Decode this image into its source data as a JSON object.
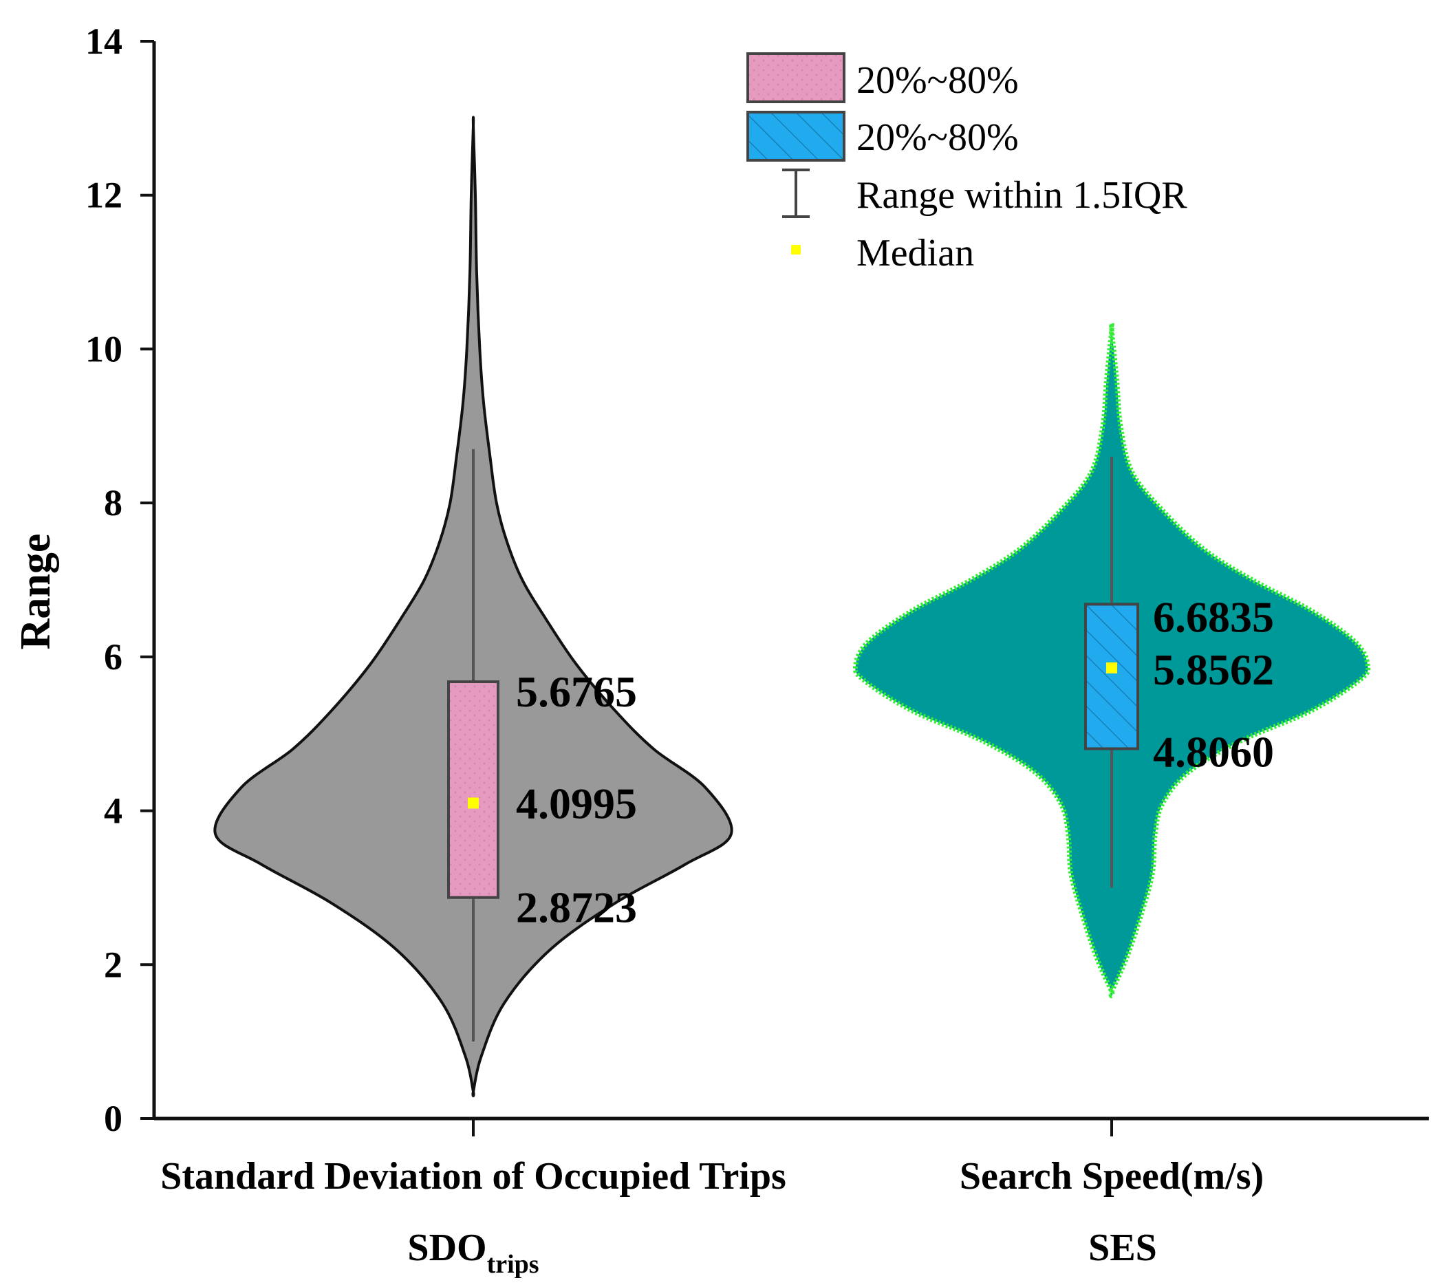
{
  "chart_data": {
    "type": "violin",
    "ylabel": "Range",
    "ylim": [
      0,
      14
    ],
    "yticks": [
      "0",
      "2",
      "4",
      "6",
      "8",
      "10",
      "12",
      "14"
    ],
    "grid": false,
    "legend_position": "top-right",
    "categories": [
      {
        "label": "Standard Deviation of Occupied Trips",
        "sublabel_main": "SDO",
        "sublabel_sub": "trips"
      },
      {
        "label": "Search Speed(m/s)",
        "sublabel_main": "SES",
        "sublabel_sub": ""
      }
    ],
    "series": [
      {
        "violin_color": "#999999",
        "violin_edge": "#111111",
        "box_color": "#e79ac0",
        "box_pattern": "dots",
        "p20": 2.8723,
        "median": 4.0995,
        "p80": 5.6765,
        "p20_label": "2.8723",
        "median_label": "4.0995",
        "p80_label": "5.6765",
        "whisker_low": 1.0,
        "whisker_high": 8.7,
        "min": 0.35,
        "max": 12.9,
        "density": [
          [
            0.35,
            0
          ],
          [
            0.8,
            0.03
          ],
          [
            1.5,
            0.12
          ],
          [
            2.2,
            0.3
          ],
          [
            2.8,
            0.55
          ],
          [
            3.3,
            0.82
          ],
          [
            3.7,
            1.0
          ],
          [
            4.3,
            0.9
          ],
          [
            4.8,
            0.7
          ],
          [
            5.3,
            0.55
          ],
          [
            5.9,
            0.4
          ],
          [
            6.5,
            0.28
          ],
          [
            7.0,
            0.19
          ],
          [
            7.5,
            0.13
          ],
          [
            8.0,
            0.09
          ],
          [
            8.6,
            0.065
          ],
          [
            9.3,
            0.04
          ],
          [
            10.0,
            0.025
          ],
          [
            11.0,
            0.013
          ],
          [
            12.0,
            0.008
          ],
          [
            12.9,
            0
          ]
        ]
      },
      {
        "violin_color": "#009999",
        "violin_edge": "#33ee33",
        "box_color": "#22aaee",
        "box_pattern": "hatch",
        "p20": 4.806,
        "median": 5.8562,
        "p80": 6.6835,
        "p20_label": "4.8060",
        "median_label": "5.8562",
        "p80_label": "6.6835",
        "whisker_low": 3.0,
        "whisker_high": 8.6,
        "min": 1.65,
        "max": 10.25,
        "density": [
          [
            1.65,
            0
          ],
          [
            2.1,
            0.06
          ],
          [
            2.7,
            0.12
          ],
          [
            3.2,
            0.16
          ],
          [
            3.7,
            0.17
          ],
          [
            4.1,
            0.2
          ],
          [
            4.5,
            0.3
          ],
          [
            4.9,
            0.5
          ],
          [
            5.3,
            0.78
          ],
          [
            5.7,
            0.97
          ],
          [
            5.9,
            1.0
          ],
          [
            6.2,
            0.95
          ],
          [
            6.6,
            0.78
          ],
          [
            7.0,
            0.55
          ],
          [
            7.4,
            0.36
          ],
          [
            7.9,
            0.2
          ],
          [
            8.4,
            0.08
          ],
          [
            9.0,
            0.035
          ],
          [
            9.6,
            0.02
          ],
          [
            10.25,
            0
          ]
        ]
      }
    ],
    "legend": [
      {
        "type": "box",
        "color": "#e79ac0",
        "pattern": "dots",
        "label": "20%~80%"
      },
      {
        "type": "box",
        "color": "#22aaee",
        "pattern": "hatch",
        "label": "20%~80%"
      },
      {
        "type": "whisker",
        "label": "Range within 1.5IQR"
      },
      {
        "type": "median",
        "color": "#ffff00",
        "label": "Median"
      }
    ]
  }
}
